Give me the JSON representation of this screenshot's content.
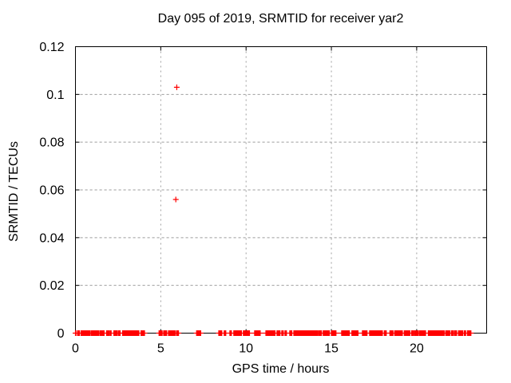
{
  "window": {
    "background": "#ffffff"
  },
  "chart_data": {
    "type": "scatter",
    "title": "Day 095 of 2019, SRMTID for receiver yar2",
    "xlabel": "GPS time / hours",
    "ylabel": "SRMTID / TECUs",
    "xlim": [
      0,
      24.1
    ],
    "ylim": [
      0,
      0.12
    ],
    "xticks": [
      0,
      5,
      10,
      15,
      20
    ],
    "xtick_labels": [
      "0",
      "5",
      "10",
      "15",
      "20"
    ],
    "yticks": [
      0,
      0.02,
      0.04,
      0.06,
      0.08,
      0.1,
      0.12
    ],
    "ytick_labels": [
      "0",
      "0.02",
      "0.04",
      "0.06",
      "0.08",
      "0.1",
      "0.12"
    ],
    "grid": true,
    "legend": "none",
    "axis_color": "#000000",
    "grid_color": "#9e9e9e",
    "series": [
      {
        "name": "SRMTID",
        "color": "#ff0000",
        "marker": "plus",
        "marker_size": 7,
        "outlier_points": [
          [
            5.94,
            0.103
          ],
          [
            5.88,
            0.056
          ]
        ],
        "baseline_y": 0,
        "baseline_point_spacing_hours": 0.03,
        "baseline_intervals_hours": [
          [
            0,
            0.05
          ],
          [
            0.12,
            0.25
          ],
          [
            0.33,
            0.89
          ],
          [
            0.94,
            1.12
          ],
          [
            1.17,
            1.4
          ],
          [
            1.45,
            1.54
          ],
          [
            1.59,
            1.68
          ],
          [
            1.82,
            2.01
          ],
          [
            2.06,
            2.11
          ],
          [
            2.25,
            2.48
          ],
          [
            2.53,
            2.62
          ],
          [
            2.76,
            3.0
          ],
          [
            3.04,
            3.56
          ],
          [
            3.6,
            3.74
          ],
          [
            3.84,
            4.07
          ],
          [
            4.9,
            5.1
          ],
          [
            5.17,
            5.35
          ],
          [
            5.45,
            5.85
          ],
          [
            5.92,
            6.05
          ],
          [
            7.1,
            7.35
          ],
          [
            8.4,
            8.6
          ],
          [
            8.72,
            8.82
          ],
          [
            9.05,
            9.15
          ],
          [
            9.28,
            9.75
          ],
          [
            9.84,
            10.22
          ],
          [
            10.5,
            10.83
          ],
          [
            11.16,
            11.72
          ],
          [
            11.81,
            12.0
          ],
          [
            12.09,
            12.19
          ],
          [
            12.28,
            12.37
          ],
          [
            12.56,
            12.7
          ],
          [
            12.8,
            14.2
          ],
          [
            14.24,
            14.43
          ],
          [
            14.52,
            14.9
          ],
          [
            15.0,
            15.27
          ],
          [
            15.6,
            16.05
          ],
          [
            16.2,
            16.58
          ],
          [
            16.82,
            17.1
          ],
          [
            17.24,
            18.0
          ],
          [
            18.1,
            18.24
          ],
          [
            18.43,
            18.62
          ],
          [
            18.71,
            19.18
          ],
          [
            19.27,
            19.6
          ],
          [
            19.7,
            19.83
          ],
          [
            19.88,
            20.11
          ],
          [
            20.16,
            20.54
          ],
          [
            20.68,
            21.61
          ],
          [
            21.7,
            21.94
          ],
          [
            22.03,
            22.17
          ],
          [
            22.22,
            22.36
          ],
          [
            22.45,
            22.69
          ],
          [
            22.78,
            22.87
          ],
          [
            22.97,
            23.2
          ]
        ]
      }
    ]
  }
}
